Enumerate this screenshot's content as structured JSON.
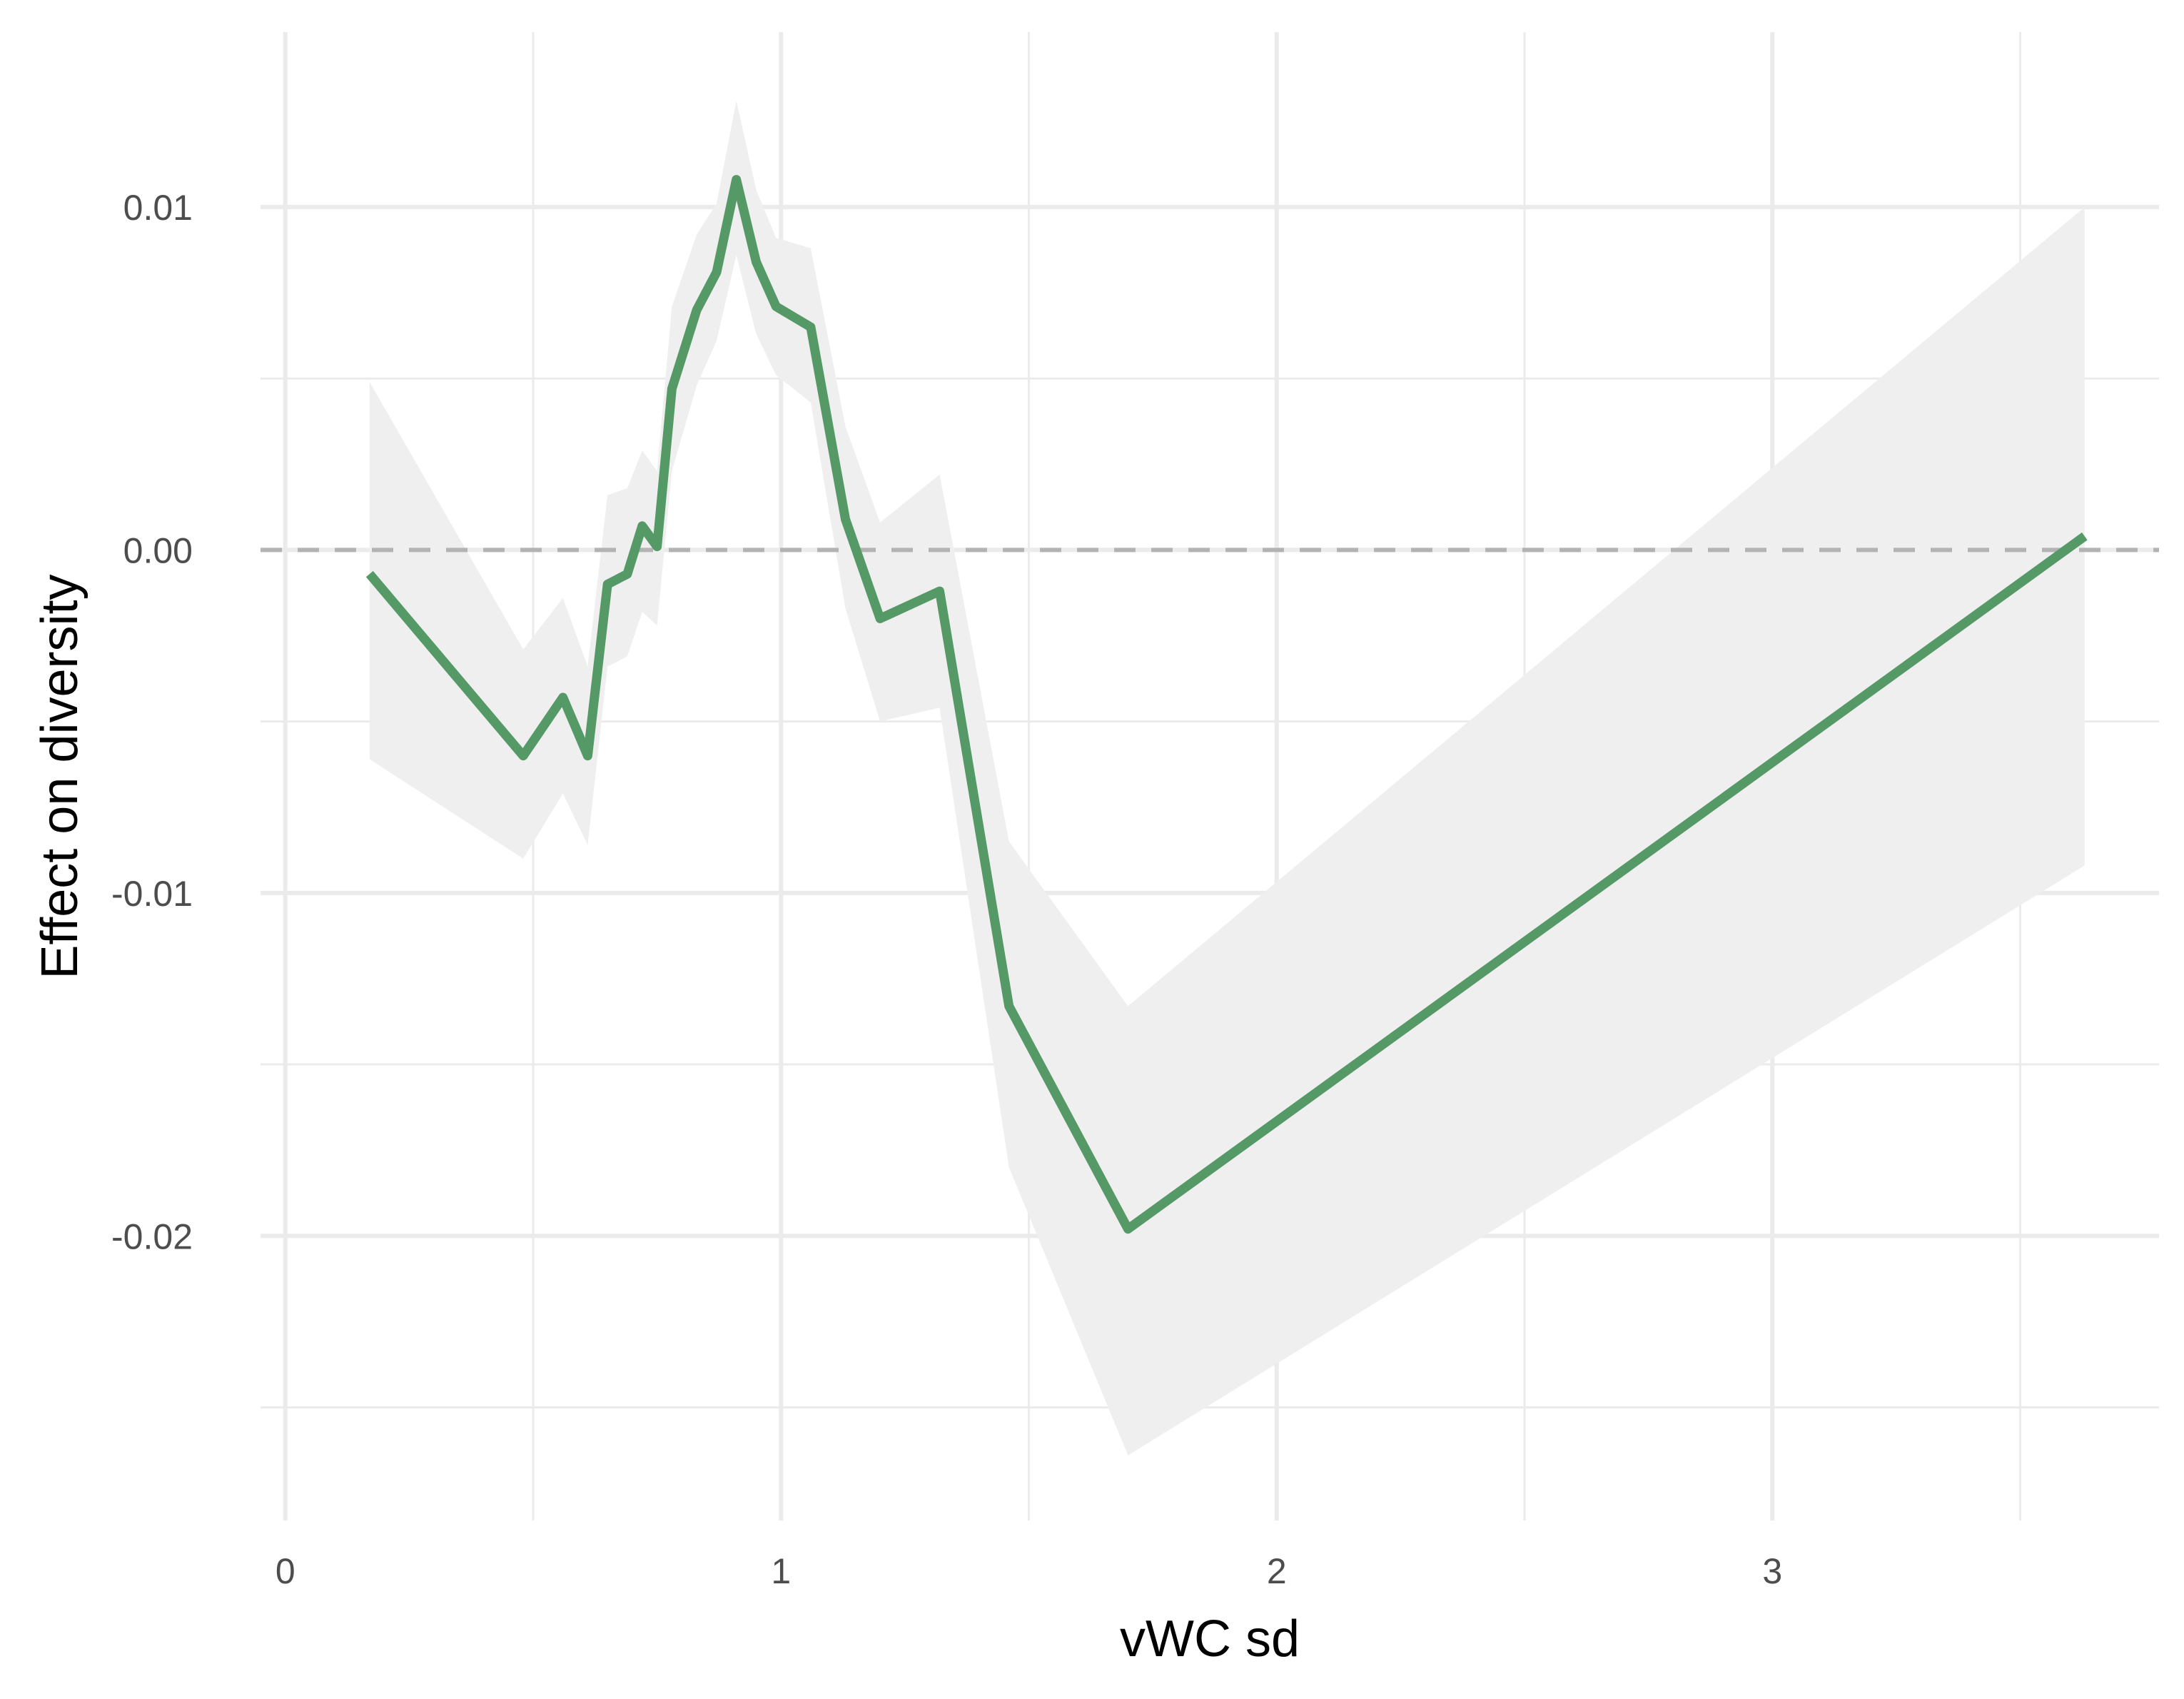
{
  "chart_data": {
    "type": "line",
    "xlabel": "vWC sd",
    "ylabel": "Effect on diversity",
    "xlim": [
      -0.05,
      3.78
    ],
    "ylim": [
      -0.0283,
      0.0151
    ],
    "x_ticks": [
      0,
      1,
      2,
      3
    ],
    "x_tick_labels": [
      "0",
      "1",
      "2",
      "3"
    ],
    "x_minor_ticks": [
      0.5,
      1.5,
      2.5,
      3.5
    ],
    "y_ticks": [
      0.01,
      0.0,
      -0.01,
      -0.02
    ],
    "y_tick_labels": [
      "0.01",
      "0.00",
      "-0.01",
      "-0.02"
    ],
    "y_minor_ticks": [
      0.005,
      -0.005,
      -0.015,
      -0.025
    ],
    "grid": true,
    "reference_line": {
      "y": 0,
      "style": "dashed"
    },
    "series": [
      {
        "color": "#559966",
        "ribbon_color": "#efefef",
        "points": [
          {
            "x": 0.17,
            "y": -0.0007,
            "lower": -0.0061,
            "upper": 0.0049
          },
          {
            "x": 0.48,
            "y": -0.006,
            "lower": -0.009,
            "upper": -0.0029
          },
          {
            "x": 0.56,
            "y": -0.0043,
            "lower": -0.0071,
            "upper": -0.0014
          },
          {
            "x": 0.61,
            "y": -0.006,
            "lower": -0.0086,
            "upper": -0.0034
          },
          {
            "x": 0.65,
            "y": -0.001,
            "lower": -0.0034,
            "upper": 0.0016
          },
          {
            "x": 0.69,
            "y": -0.0007,
            "lower": -0.0031,
            "upper": 0.0018
          },
          {
            "x": 0.72,
            "y": 0.0007,
            "lower": -0.0018,
            "upper": 0.0029
          },
          {
            "x": 0.75,
            "y": 0.0001,
            "lower": -0.0022,
            "upper": 0.0023
          },
          {
            "x": 0.78,
            "y": 0.0047,
            "lower": 0.0023,
            "upper": 0.0071
          },
          {
            "x": 0.83,
            "y": 0.007,
            "lower": 0.0048,
            "upper": 0.0092
          },
          {
            "x": 0.87,
            "y": 0.0081,
            "lower": 0.0061,
            "upper": 0.0101
          },
          {
            "x": 0.91,
            "y": 0.0108,
            "lower": 0.0086,
            "upper": 0.0131
          },
          {
            "x": 0.95,
            "y": 0.0084,
            "lower": 0.0063,
            "upper": 0.0105
          },
          {
            "x": 0.99,
            "y": 0.0071,
            "lower": 0.0051,
            "upper": 0.0091
          },
          {
            "x": 1.06,
            "y": 0.0065,
            "lower": 0.0043,
            "upper": 0.0088
          },
          {
            "x": 1.13,
            "y": 0.0009,
            "lower": -0.0017,
            "upper": 0.0036
          },
          {
            "x": 1.2,
            "y": -0.002,
            "lower": -0.005,
            "upper": 0.0008
          },
          {
            "x": 1.32,
            "y": -0.0012,
            "lower": -0.0046,
            "upper": 0.0022
          },
          {
            "x": 1.46,
            "y": -0.0133,
            "lower": -0.018,
            "upper": -0.0085
          },
          {
            "x": 1.7,
            "y": -0.0198,
            "lower": -0.0264,
            "upper": -0.0133
          },
          {
            "x": 3.63,
            "y": 0.0004,
            "lower": -0.0092,
            "upper": 0.01
          }
        ]
      }
    ]
  }
}
